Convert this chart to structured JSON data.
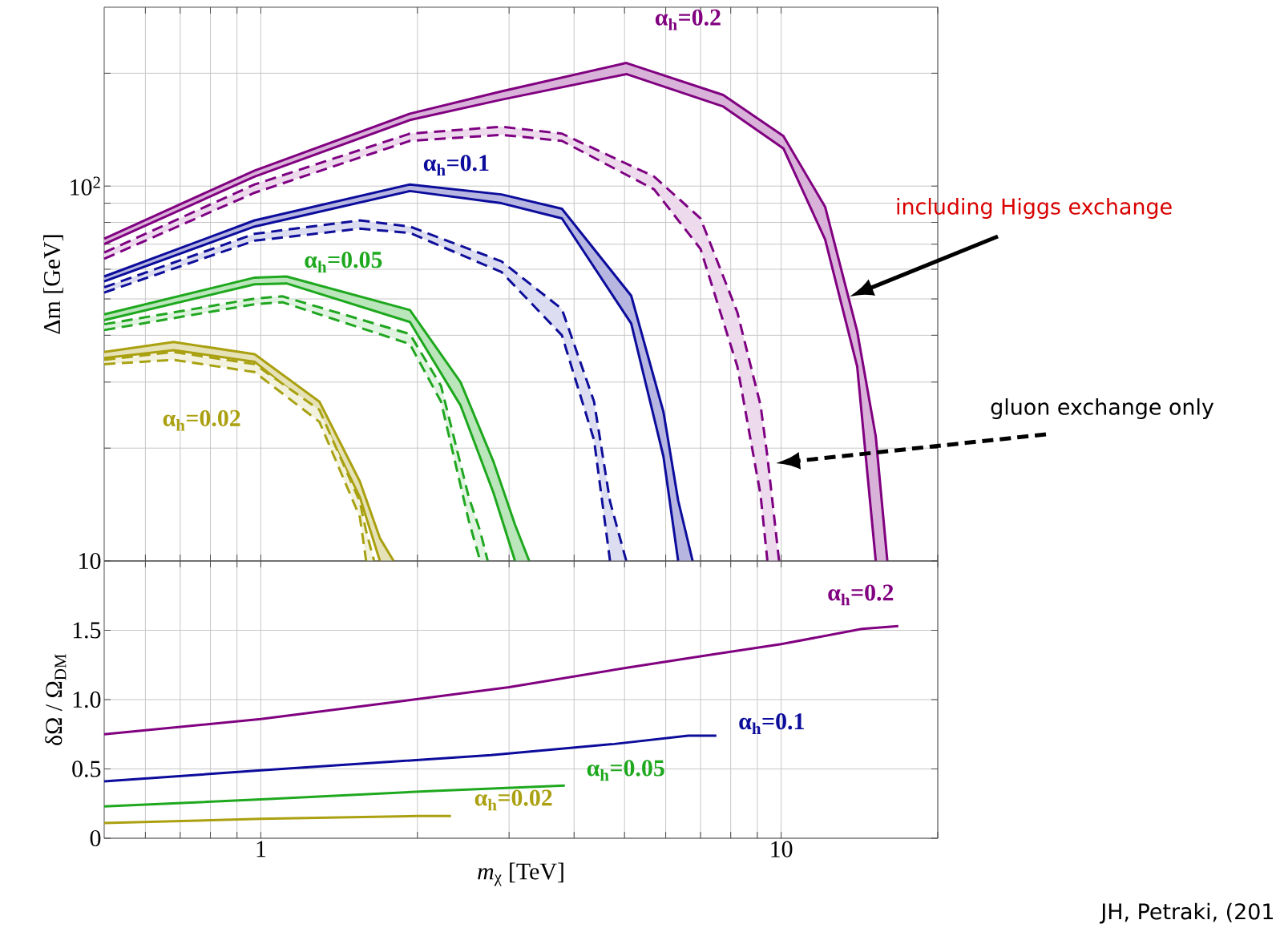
{
  "chart_data": [
    {
      "type": "line",
      "log": "xy",
      "grid": true,
      "tick_labels": "y",
      "ylabel": "Δm  [GeV]",
      "xlim": [
        0.5,
        20
      ],
      "ylim": [
        10,
        300
      ],
      "xticks": [
        0.6,
        0.7,
        0.8,
        0.9,
        1,
        2,
        3,
        4,
        5,
        6,
        7,
        8,
        9,
        10,
        20
      ],
      "yticks": [
        10,
        {
          "value": 20,
          "label": null
        },
        {
          "value": 30,
          "label": null
        },
        {
          "value": 40,
          "label": null
        },
        {
          "value": 50,
          "label": null
        },
        {
          "value": 60,
          "label": null
        },
        {
          "value": 70,
          "label": null
        },
        {
          "value": 80,
          "label": null
        },
        {
          "value": 90,
          "label": null
        },
        {
          "value": 100,
          "label": "10$^{2}$"
        },
        {
          "value": 200,
          "label": null
        }
      ],
      "series": [
        {
          "name": "**α$_{h}$=0.2**",
          "color": "#800080",
          "line_style": "solid",
          "x": [
            0.5,
            0.973,
            1.934,
            2.9,
            5.04,
            7.74,
            10.1,
            12.15,
            14.0,
            15.2,
            16.0
          ],
          "values": [
            72.4,
            110,
            156,
            179,
            213,
            175,
            136,
            88,
            41,
            21.5,
            10
          ],
          "upper": [
            72.4,
            110,
            156,
            179,
            213,
            175,
            136,
            88,
            41,
            21.5,
            10
          ],
          "lower": [
            70,
            106,
            150,
            170,
            199,
            163,
            126,
            72,
            33,
            10,
            10
          ]
        },
        {
          "color": "#800080",
          "line_style": "solid",
          "x": [
            0.5,
            0.973,
            1.934,
            2.9,
            5.04,
            7.74,
            10.1,
            12.15,
            14.0,
            15.2
          ],
          "values": [
            70,
            106,
            150,
            170,
            199,
            163,
            126,
            72,
            33,
            10
          ]
        },
        {
          "color": "#7e0082",
          "line_style": "dashed",
          "x": [
            0.5,
            0.973,
            1.934,
            2.9,
            3.79,
            5.7,
            7.0,
            8.24,
            9.13,
            9.41,
            9.91
          ],
          "values": [
            66.5,
            101,
            138,
            144,
            138,
            106,
            82,
            46,
            26,
            19,
            10
          ],
          "upper": [
            66.5,
            101,
            138,
            144,
            138,
            106,
            82,
            46,
            26,
            19,
            10
          ],
          "lower": [
            64,
            96,
            132,
            137,
            132,
            98,
            68,
            33,
            15,
            10,
            10
          ]
        },
        {
          "color": "#7e0082",
          "line_style": "dashed",
          "x": [
            0.5,
            0.973,
            1.934,
            2.9,
            3.79,
            5.7,
            7.0,
            8.24,
            9.13,
            9.41
          ],
          "values": [
            64,
            96,
            132,
            137,
            132,
            98,
            68,
            33,
            15,
            10
          ]
        },
        {
          "name": "**α$_{h}$=0.1**",
          "color": "#0c0c9c",
          "line_style": "solid",
          "x": [
            0.5,
            0.973,
            1.934,
            2.9,
            3.79,
            5.15,
            5.94,
            6.34,
            6.76
          ],
          "values": [
            57.4,
            81,
            101,
            95,
            87,
            51,
            25,
            14.5,
            10
          ],
          "upper": [
            57.4,
            81,
            101,
            95,
            87,
            51,
            25,
            14.5,
            10
          ],
          "lower": [
            55.7,
            78,
            97,
            90,
            82,
            43,
            19,
            10,
            10
          ]
        },
        {
          "color": "#0c0c9c",
          "line_style": "solid",
          "x": [
            0.5,
            0.973,
            1.934,
            2.9,
            3.79,
            5.15,
            5.94,
            6.34
          ],
          "values": [
            55.7,
            78,
            97,
            90,
            82,
            43,
            19,
            10
          ]
        },
        {
          "color": "#0e0e9a",
          "line_style": "dashed",
          "x": [
            0.5,
            0.973,
            1.55,
            1.934,
            2.9,
            3.79,
            4.37,
            4.69,
            5.04
          ],
          "values": [
            53.7,
            74.6,
            81,
            78,
            63,
            47,
            26.6,
            14.4,
            10
          ],
          "upper": [
            53.7,
            74.6,
            81,
            78,
            63,
            47,
            26.6,
            14.4,
            10
          ],
          "lower": [
            52,
            71.5,
            77,
            75,
            59,
            40,
            21,
            10,
            10
          ]
        },
        {
          "color": "#0e0e9a",
          "line_style": "dashed",
          "x": [
            0.5,
            0.973,
            1.55,
            1.934,
            2.9,
            3.79,
            4.37,
            4.69
          ],
          "values": [
            52,
            71.5,
            77,
            75,
            59,
            40,
            21,
            10
          ]
        },
        {
          "name": "**α$_{h}$=0.05**",
          "color": "#1ea81e",
          "line_style": "solid",
          "x": [
            0.5,
            0.973,
            1.12,
            1.934,
            2.42,
            2.8,
            3.08,
            3.28
          ],
          "values": [
            45.5,
            57,
            57.4,
            46.7,
            30,
            18.4,
            12.5,
            10
          ],
          "upper": [
            45.5,
            57,
            57.4,
            46.7,
            30,
            18.4,
            12.5,
            10
          ],
          "lower": [
            43.9,
            54.7,
            55,
            43.4,
            26,
            15.2,
            10,
            10
          ]
        },
        {
          "color": "#1ea81e",
          "line_style": "solid",
          "x": [
            0.5,
            0.973,
            1.12,
            1.934,
            2.42,
            2.8,
            3.08
          ],
          "values": [
            43.9,
            54.7,
            55,
            43.4,
            26,
            15.2,
            10
          ]
        },
        {
          "color": "#20a620",
          "line_style": "dashed",
          "x": [
            0.5,
            0.973,
            1.1,
            1.934,
            2.22,
            2.51,
            2.64,
            2.73
          ],
          "values": [
            42.8,
            50.1,
            50.8,
            40.3,
            29.3,
            14.8,
            12,
            10
          ],
          "upper": [
            42.8,
            50.1,
            50.8,
            40.3,
            29.3,
            14.8,
            12,
            10
          ],
          "lower": [
            41.3,
            48.4,
            49,
            37.9,
            26.6,
            12.8,
            10,
            10
          ]
        },
        {
          "color": "#20a620",
          "line_style": "dashed",
          "x": [
            0.5,
            0.973,
            1.1,
            1.934,
            2.22,
            2.51,
            2.64
          ],
          "values": [
            41.3,
            48.4,
            49,
            37.9,
            26.6,
            12.8,
            10
          ]
        },
        {
          "name": "**α$_{h}$=0.02**",
          "color": "#aaa010",
          "line_style": "solid",
          "x": [
            0.5,
            0.68,
            0.973,
            1.296,
            1.55,
            1.694,
            1.8
          ],
          "values": [
            36.1,
            38.4,
            35.6,
            26.6,
            16.3,
            11.5,
            10
          ],
          "upper": [
            36.1,
            38.4,
            35.6,
            26.6,
            16.3,
            11.5,
            10
          ],
          "lower": [
            34.8,
            36.5,
            34,
            24.7,
            14.8,
            10,
            10
          ]
        },
        {
          "color": "#aaa010",
          "line_style": "solid",
          "x": [
            0.5,
            0.68,
            0.973,
            1.296,
            1.55,
            1.694
          ],
          "values": [
            34.8,
            36.5,
            34,
            24.7,
            14.8,
            10
          ]
        },
        {
          "color": "#a8a212",
          "line_style": "dashed",
          "x": [
            0.5,
            0.68,
            0.973,
            1.296,
            1.55,
            1.594,
            1.651
          ],
          "values": [
            34.4,
            36.1,
            33.5,
            25.3,
            14.4,
            12,
            10
          ],
          "upper": [
            34.4,
            36.1,
            33.5,
            25.3,
            14.4,
            12,
            10
          ],
          "lower": [
            33.5,
            34.4,
            31.9,
            23.5,
            13.1,
            10,
            10
          ]
        },
        {
          "color": "#a8a212",
          "line_style": "dashed",
          "x": [
            0.5,
            0.68,
            0.973,
            1.296,
            1.55,
            1.594
          ],
          "values": [
            33.5,
            34.4,
            31.9,
            23.5,
            13.1,
            10
          ]
        }
      ],
      "annotations": [
        "including Higgs exchange",
        "gluon exchange only"
      ]
    },
    {
      "type": "line",
      "log": "x",
      "grid": true,
      "xlabel": "*m*$_{χ}$  [TeV]",
      "ylabel": "δΩ / Ω$_{DM}$",
      "xlim": [
        0.5,
        20
      ],
      "ylim": [
        0,
        2
      ],
      "xticks": [
        {
          "value": 0.6,
          "label": null
        },
        {
          "value": 0.7,
          "label": null
        },
        {
          "value": 0.8,
          "label": null
        },
        {
          "value": 0.9,
          "label": null
        },
        1,
        {
          "value": 2,
          "label": null
        },
        {
          "value": 3,
          "label": null
        },
        {
          "value": 4,
          "label": null
        },
        {
          "value": 5,
          "label": null
        },
        {
          "value": 6,
          "label": null
        },
        {
          "value": 7,
          "label": null
        },
        {
          "value": 8,
          "label": null
        },
        {
          "value": 9,
          "label": null
        },
        10,
        {
          "value": 20,
          "label": null
        }
      ],
      "yticks": [
        0,
        0.5,
        {
          "value": 1,
          "label": "1.0"
        },
        1.5
      ],
      "series": [
        {
          "name": "**α$_{h}$=0.2**",
          "color": "#800080",
          "x": [
            0.5,
            1,
            1.786,
            3.0,
            5.05,
            7.2,
            10,
            14.3,
            16.8
          ],
          "values": [
            0.75,
            0.86,
            0.98,
            1.09,
            1.23,
            1.32,
            1.4,
            1.51,
            1.53
          ]
        },
        {
          "name": "**α$_{h}$=0.1**",
          "color": "#0c0c9c",
          "x": [
            0.5,
            1,
            2.77,
            4.78,
            6.63,
            7.51
          ],
          "values": [
            0.41,
            0.49,
            0.6,
            0.68,
            0.74,
            0.74
          ]
        },
        {
          "name": "**α$_{h}$=0.05**",
          "color": "#1ea81e",
          "x": [
            0.5,
            1,
            2.1,
            3.84
          ],
          "values": [
            0.23,
            0.28,
            0.34,
            0.38
          ]
        },
        {
          "name": "**α$_{h}$=0.02**",
          "color": "#aaa010",
          "x": [
            0.5,
            1,
            1.99,
            2.32
          ],
          "values": [
            0.11,
            0.14,
            0.16,
            0.16
          ]
        }
      ],
      "annotations": [
        "JH, Petraki, (201"
      ]
    }
  ]
}
